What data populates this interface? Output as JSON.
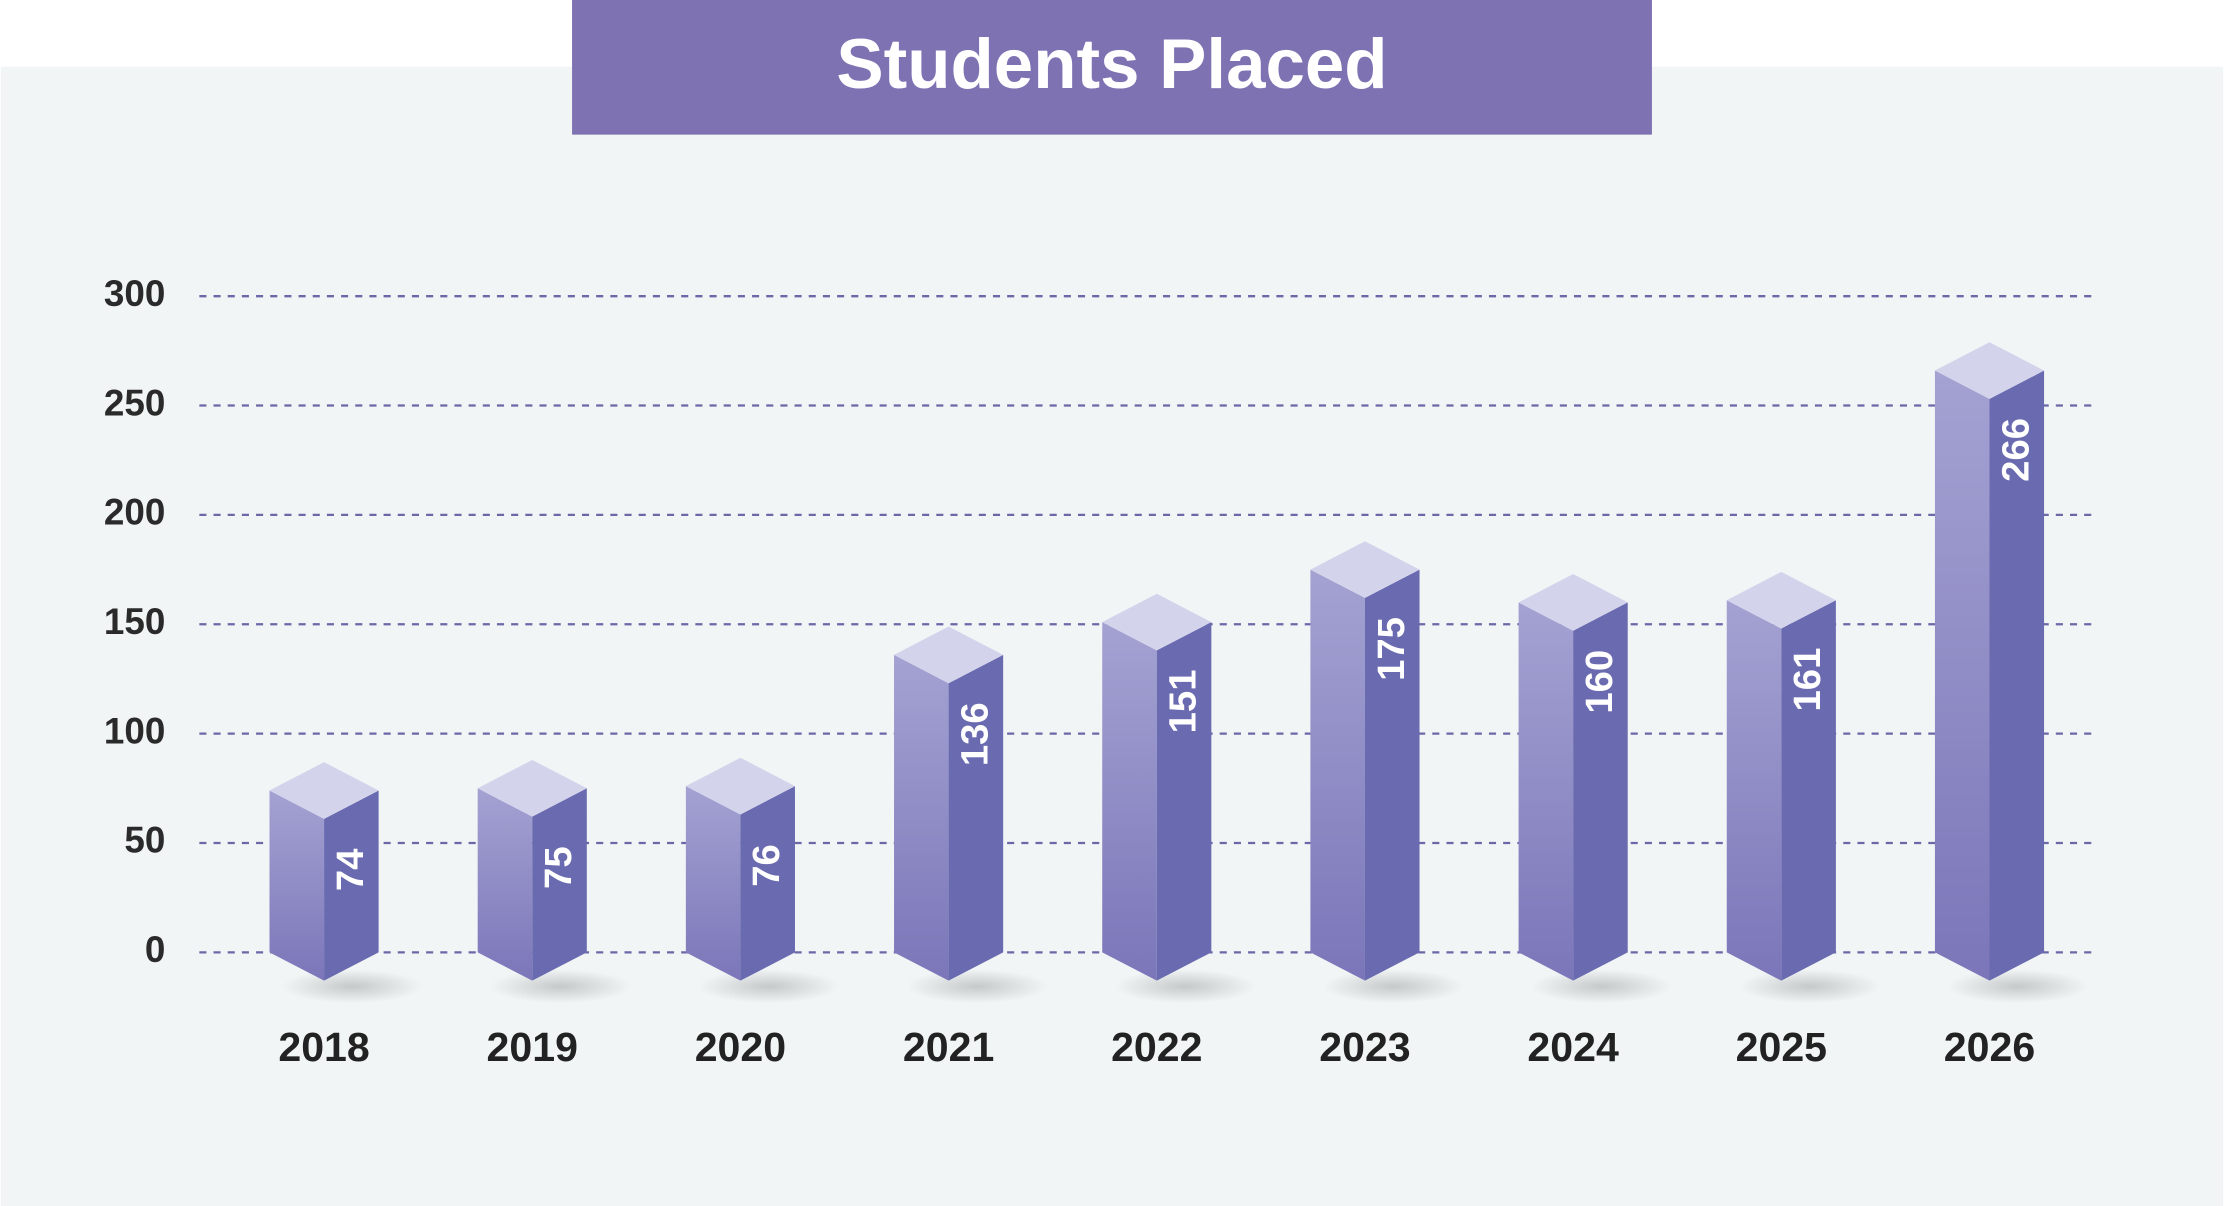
{
  "chart_data": {
    "type": "bar3d",
    "title": "Students Placed",
    "categories": [
      "2018",
      "2019",
      "2020",
      "2021",
      "2022",
      "2023",
      "2024",
      "2025",
      "2026"
    ],
    "values": [
      74,
      75,
      76,
      136,
      151,
      175,
      160,
      161,
      266
    ],
    "color": "#6a6ab0",
    "ylim": [
      0,
      300
    ],
    "yticks": [
      0,
      50,
      100,
      150,
      200,
      250,
      300
    ],
    "grid": true
  }
}
